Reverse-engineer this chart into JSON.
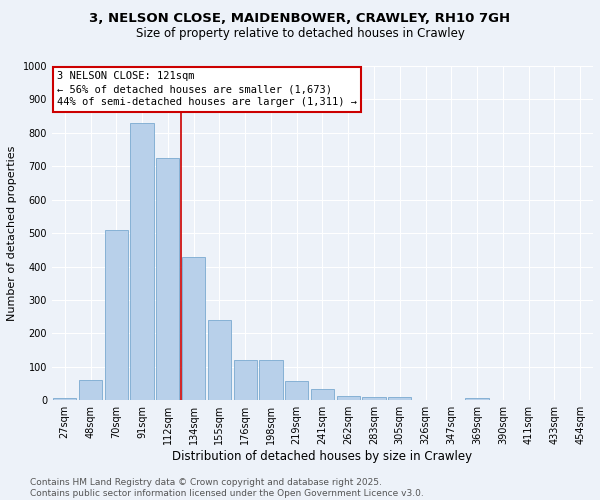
{
  "title_line1": "3, NELSON CLOSE, MAIDENBOWER, CRAWLEY, RH10 7GH",
  "title_line2": "Size of property relative to detached houses in Crawley",
  "xlabel": "Distribution of detached houses by size in Crawley",
  "ylabel": "Number of detached properties",
  "categories": [
    "27sqm",
    "48sqm",
    "70sqm",
    "91sqm",
    "112sqm",
    "134sqm",
    "155sqm",
    "176sqm",
    "198sqm",
    "219sqm",
    "241sqm",
    "262sqm",
    "283sqm",
    "305sqm",
    "326sqm",
    "347sqm",
    "369sqm",
    "390sqm",
    "411sqm",
    "433sqm",
    "454sqm"
  ],
  "values": [
    8,
    60,
    510,
    830,
    725,
    430,
    240,
    120,
    120,
    57,
    35,
    12,
    10,
    10,
    0,
    0,
    8,
    0,
    0,
    0,
    0
  ],
  "bar_color": "#b8d0ea",
  "bar_edge_color": "#7aaad0",
  "vline_x": 4.5,
  "vline_color": "#cc0000",
  "annotation_text": "3 NELSON CLOSE: 121sqm\n← 56% of detached houses are smaller (1,673)\n44% of semi-detached houses are larger (1,311) →",
  "annotation_box_color": "#ffffff",
  "annotation_box_edge": "#cc0000",
  "ylim": [
    0,
    1000
  ],
  "yticks": [
    0,
    100,
    200,
    300,
    400,
    500,
    600,
    700,
    800,
    900,
    1000
  ],
  "footnote": "Contains HM Land Registry data © Crown copyright and database right 2025.\nContains public sector information licensed under the Open Government Licence v3.0.",
  "bg_color": "#edf2f9",
  "grid_color": "#ffffff",
  "title_fontsize": 9.5,
  "subtitle_fontsize": 8.5,
  "axis_label_fontsize": 8,
  "tick_fontsize": 7,
  "annotation_fontsize": 7.5,
  "footnote_fontsize": 6.5
}
